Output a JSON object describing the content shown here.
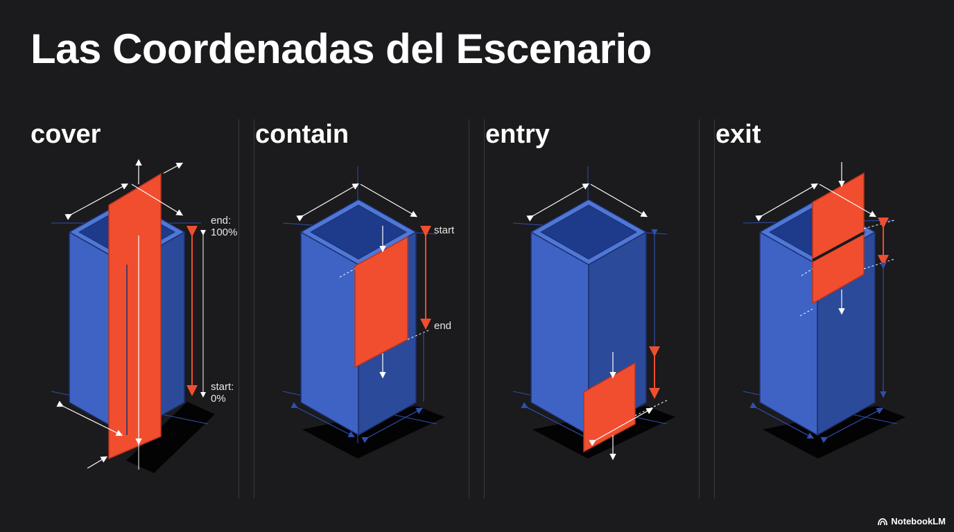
{
  "title": "Las Coordenadas del Escenario",
  "panels": [
    {
      "label": "cover",
      "annotations": {
        "end": "end:",
        "end_value": "100%",
        "start": "start:",
        "start_value": "0%"
      }
    },
    {
      "label": "contain",
      "annotations": {
        "start": "start",
        "end": "end"
      }
    },
    {
      "label": "entry",
      "annotations": {}
    },
    {
      "label": "exit",
      "annotations": {}
    }
  ],
  "colors": {
    "background": "#1b1a1c",
    "box_front": "#3e63c4",
    "box_side": "#2b4a9a",
    "box_rim": "#4f77d6",
    "element": "#f04e2f",
    "range_arrow": "#f04e2f",
    "guide_line": "#2f4fb0"
  },
  "brand": {
    "name": "NotebookLM",
    "icon": "notebooklm-icon"
  }
}
